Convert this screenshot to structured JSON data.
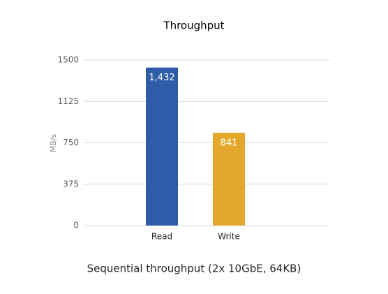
{
  "chart_data": {
    "type": "bar",
    "title": "Throughput",
    "subtitle": "Sequential throughput (2x 10GbE, 64KB)",
    "y_label": "MB/s",
    "categories": [
      "Read",
      "Write"
    ],
    "values": [
      1432,
      841
    ],
    "value_labels": [
      "1,432",
      "841"
    ],
    "colors": [
      "#2e5ca8",
      "#e3a82b"
    ],
    "ylim": [
      0,
      1500
    ],
    "yticks": [
      0,
      375,
      750,
      1125,
      1500
    ],
    "grid": true
  }
}
